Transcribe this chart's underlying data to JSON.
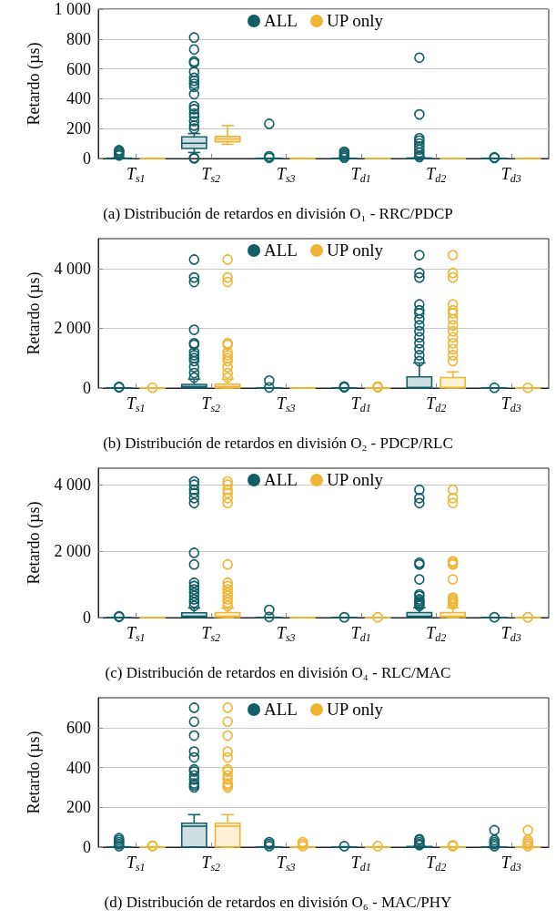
{
  "chart_data": [
    {
      "type": "box",
      "title": "(a) Distribución de retardos en división O₁ - RRC/PDCP",
      "ylabel": "Retardo (µs)",
      "categories": [
        "T$_{s1}$",
        "T$_{s2}$",
        "T$_{s3}$",
        "T$_{d1}$",
        "T$_{d2}$",
        "T$_{d3}$"
      ],
      "ylim": [
        0,
        1000
      ],
      "yticks": [
        0,
        200,
        400,
        600,
        800,
        {
          "value": 1000,
          "label": "1 000"
        }
      ],
      "grid": "y",
      "legend": "top",
      "marker": "circle",
      "series": [
        {
          "name": "ALL",
          "color": "#115e67",
          "boxes": [
            {
              "low": 0,
              "q1": 0,
              "median": 0,
              "q3": 2,
              "high": 5,
              "outliers": [
                20,
                30,
                40,
                50,
                55
              ]
            },
            {
              "low": 40,
              "q1": 67,
              "median": 102,
              "q3": 145,
              "high": 167,
              "outliers": [
                0,
                5,
                200,
                220,
                250,
                280,
                300,
                330,
                350,
                430,
                480,
                500,
                520,
                540,
                580,
                640,
                650,
                730,
                810
              ]
            },
            {
              "low": 0,
              "q1": 0,
              "median": 0,
              "q3": 1,
              "high": 2,
              "outliers": [
                5,
                15,
                232
              ]
            },
            {
              "low": 0,
              "q1": 0,
              "median": 0,
              "q3": 1,
              "high": 2,
              "outliers": [
                5,
                15,
                25,
                35,
                45
              ]
            },
            {
              "low": 0,
              "q1": 0,
              "median": 0,
              "q3": 3,
              "high": 5,
              "outliers": [
                10,
                20,
                40,
                60,
                80,
                100,
                120,
                135,
                295,
                675
              ]
            },
            {
              "low": 0,
              "q1": 0,
              "median": 0,
              "q3": 1,
              "high": 2,
              "outliers": [
                3,
                8
              ]
            }
          ]
        },
        {
          "name": "UP only",
          "color": "#f0b535",
          "boxes": [
            {
              "low": 0,
              "q1": 0,
              "median": 0,
              "q3": 1,
              "high": 2
            },
            {
              "low": 95,
              "q1": 112,
              "median": 130,
              "q3": 147,
              "high": 220
            },
            {
              "low": 0,
              "q1": 0,
              "median": 0,
              "q3": 1,
              "high": 2
            },
            {
              "low": 0,
              "q1": 0,
              "median": 0,
              "q3": 1,
              "high": 2
            },
            {
              "low": 0,
              "q1": 0,
              "median": 0,
              "q3": 1,
              "high": 2
            },
            {
              "low": 0,
              "q1": 0,
              "median": 0,
              "q3": 1,
              "high": 2
            }
          ]
        }
      ]
    },
    {
      "type": "box",
      "title": "(b) Distribución de retardos en división O₂ - PDCP/RLC",
      "ylabel": "Retardo (µs)",
      "categories": [
        "T$_{s1}$",
        "T$_{s2}$",
        "T$_{s3}$",
        "T$_{d1}$",
        "T$_{d2}$",
        "T$_{d3}$"
      ],
      "ylim": [
        0,
        5000
      ],
      "yticks": [
        0,
        {
          "value": 2000,
          "label": "2 000"
        },
        {
          "value": 4000,
          "label": "4 000"
        }
      ],
      "grid": "y",
      "legend": "top",
      "marker": "circle",
      "series": [
        {
          "name": "ALL",
          "color": "#115e67",
          "boxes": [
            {
              "low": 0,
              "q1": 0,
              "median": 0,
              "q3": 5,
              "high": 10,
              "outliers": [
                20,
                40
              ]
            },
            {
              "low": 0,
              "q1": 5,
              "median": 50,
              "q3": 120,
              "high": 300,
              "outliers": [
                350,
                500,
                700,
                900,
                1000,
                1100,
                1200,
                1450,
                1500,
                1950,
                3550,
                3700,
                4300
              ]
            },
            {
              "low": 0,
              "q1": 0,
              "median": 0,
              "q3": 5,
              "high": 10,
              "outliers": [
                20,
                250
              ]
            },
            {
              "low": 0,
              "q1": 0,
              "median": 0,
              "q3": 5,
              "high": 10,
              "outliers": [
                20,
                50
              ]
            },
            {
              "low": 0,
              "q1": 0,
              "median": 20,
              "q3": 375,
              "high": 840,
              "outliers": [
                900,
                1100,
                1300,
                1500,
                1700,
                1900,
                2100,
                2300,
                2500,
                2600,
                2800,
                3700,
                3850,
                4450
              ]
            },
            {
              "low": 0,
              "q1": 0,
              "median": 0,
              "q3": 2,
              "high": 5,
              "outliers": [
                10
              ]
            }
          ]
        },
        {
          "name": "UP only",
          "color": "#f0b535",
          "boxes": [
            {
              "low": 0,
              "q1": 0,
              "median": 0,
              "q3": 2,
              "high": 5,
              "outliers": [
                10
              ]
            },
            {
              "low": 0,
              "q1": 5,
              "median": 50,
              "q3": 130,
              "high": 300,
              "outliers": [
                350,
                500,
                700,
                900,
                1000,
                1100,
                1200,
                1450,
                1500,
                3550,
                3700,
                4300
              ]
            },
            {
              "low": 0,
              "q1": 0,
              "median": 0,
              "q3": 2,
              "high": 5
            },
            {
              "low": 0,
              "q1": 0,
              "median": 0,
              "q3": 5,
              "high": 10,
              "outliers": [
                20,
                50
              ]
            },
            {
              "low": 0,
              "q1": 0,
              "median": 20,
              "q3": 350,
              "high": 540,
              "outliers": [
                900,
                1100,
                1300,
                1500,
                1700,
                1900,
                2100,
                2300,
                2500,
                2600,
                2800,
                3700,
                3850,
                4450
              ]
            },
            {
              "low": 0,
              "q1": 0,
              "median": 0,
              "q3": 2,
              "high": 5,
              "outliers": [
                10
              ]
            }
          ]
        }
      ]
    },
    {
      "type": "box",
      "title": "(c) Distribución de retardos en división O₄ - RLC/MAC",
      "ylabel": "Retardo (µs)",
      "categories": [
        "T$_{s1}$",
        "T$_{s2}$",
        "T$_{s3}$",
        "T$_{d1}$",
        "T$_{d2}$",
        "T$_{d3}$"
      ],
      "ylim": [
        0,
        4500
      ],
      "yticks": [
        0,
        {
          "value": 2000,
          "label": "2 000"
        },
        {
          "value": 4000,
          "label": "4 000"
        }
      ],
      "grid": "y",
      "legend": "top",
      "marker": "circle",
      "series": [
        {
          "name": "ALL",
          "color": "#115e67",
          "boxes": [
            {
              "low": 0,
              "q1": 0,
              "median": 0,
              "q3": 5,
              "high": 10,
              "outliers": [
                20,
                40
              ]
            },
            {
              "low": 0,
              "q1": 5,
              "median": 40,
              "q3": 146,
              "high": 290,
              "outliers": [
                350,
                450,
                550,
                650,
                750,
                850,
                950,
                1050,
                1600,
                1950,
                3450,
                3600,
                3750,
                3850,
                4000,
                4100
              ]
            },
            {
              "low": 0,
              "q1": 0,
              "median": 0,
              "q3": 5,
              "high": 10,
              "outliers": [
                20,
                230
              ]
            },
            {
              "low": 0,
              "q1": 0,
              "median": 0,
              "q3": 2,
              "high": 5,
              "outliers": [
                10
              ]
            },
            {
              "low": 0,
              "q1": 5,
              "median": 40,
              "q3": 150,
              "high": 300,
              "outliers": [
                350,
                400,
                450,
                500,
                550,
                650,
                700,
                1150,
                1600,
                1650,
                3450,
                3600,
                3850
              ]
            },
            {
              "low": 0,
              "q1": 0,
              "median": 0,
              "q3": 2,
              "high": 5,
              "outliers": [
                10
              ]
            }
          ]
        },
        {
          "name": "UP only",
          "color": "#f0b535",
          "boxes": [
            {
              "low": 0,
              "q1": 0,
              "median": 0,
              "q3": 2,
              "high": 5
            },
            {
              "low": 0,
              "q1": 5,
              "median": 40,
              "q3": 150,
              "high": 290,
              "outliers": [
                350,
                450,
                550,
                650,
                750,
                850,
                950,
                1050,
                1600,
                3450,
                3600,
                3750,
                3850,
                4000,
                4100
              ]
            },
            {
              "low": 0,
              "q1": 0,
              "median": 0,
              "q3": 2,
              "high": 5
            },
            {
              "low": 0,
              "q1": 0,
              "median": 0,
              "q3": 2,
              "high": 5,
              "outliers": [
                10
              ]
            },
            {
              "low": 0,
              "q1": 5,
              "median": 40,
              "q3": 150,
              "high": 300,
              "outliers": [
                400,
                450,
                500,
                550,
                600,
                1150,
                1600,
                1650,
                1700,
                3450,
                3600,
                3850
              ]
            },
            {
              "low": 0,
              "q1": 0,
              "median": 0,
              "q3": 2,
              "high": 5,
              "outliers": [
                10
              ]
            }
          ]
        }
      ]
    },
    {
      "type": "box",
      "title": "(d) Distribución de retardos en división O₆ - MAC/PHY",
      "ylabel": "Retardo (µs)",
      "categories": [
        "T$_{s1}$",
        "T$_{s2}$",
        "T$_{s3}$",
        "T$_{d1}$",
        "T$_{d2}$",
        "T$_{d3}$"
      ],
      "ylim": [
        0,
        750
      ],
      "yticks": [
        0,
        200,
        400,
        600
      ],
      "grid": "y",
      "legend": "top",
      "marker": "circle",
      "series": [
        {
          "name": "ALL",
          "color": "#115e67",
          "boxes": [
            {
              "low": 0,
              "q1": 0,
              "median": 0,
              "q3": 1,
              "high": 2,
              "outliers": [
                5,
                15,
                25,
                35,
                45
              ]
            },
            {
              "low": 0,
              "q1": 0,
              "median": 105,
              "q3": 120,
              "high": 163,
              "outliers": [
                300,
                310,
                320,
                340,
                360,
                380,
                390,
                450,
                480,
                560,
                630,
                700
              ]
            },
            {
              "low": 0,
              "q1": 0,
              "median": 0,
              "q3": 1,
              "high": 2,
              "outliers": [
                5,
                15,
                25
              ]
            },
            {
              "low": 0,
              "q1": 0,
              "median": 0,
              "q3": 1,
              "high": 2,
              "outliers": [
                5
              ]
            },
            {
              "low": 0,
              "q1": 0,
              "median": 1,
              "q3": 3,
              "high": 4,
              "outliers": [
                10,
                15,
                25,
                35,
                40
              ]
            },
            {
              "low": 0,
              "q1": 0,
              "median": 0,
              "q3": 1,
              "high": 2,
              "outliers": [
                5,
                15,
                25,
                35,
                85
              ]
            }
          ]
        },
        {
          "name": "UP only",
          "color": "#f0b535",
          "boxes": [
            {
              "low": 0,
              "q1": 0,
              "median": 0,
              "q3": 1,
              "high": 2,
              "outliers": [
                5,
                8
              ]
            },
            {
              "low": 0,
              "q1": 0,
              "median": 105,
              "q3": 120,
              "high": 163,
              "outliers": [
                300,
                310,
                320,
                340,
                360,
                380,
                390,
                450,
                480,
                560,
                630,
                700
              ]
            },
            {
              "low": 0,
              "q1": 0,
              "median": 0,
              "q3": 1,
              "high": 2,
              "outliers": [
                5,
                15,
                25
              ]
            },
            {
              "low": 0,
              "q1": 0,
              "median": 0,
              "q3": 1,
              "high": 2,
              "outliers": [
                5
              ]
            },
            {
              "low": 0,
              "q1": 0,
              "median": 0,
              "q3": 1,
              "high": 2,
              "outliers": [
                5,
                10
              ]
            },
            {
              "low": 0,
              "q1": 0,
              "median": 0,
              "q3": 1,
              "high": 2,
              "outliers": [
                5,
                15,
                25,
                35,
                85
              ]
            }
          ]
        }
      ]
    }
  ]
}
